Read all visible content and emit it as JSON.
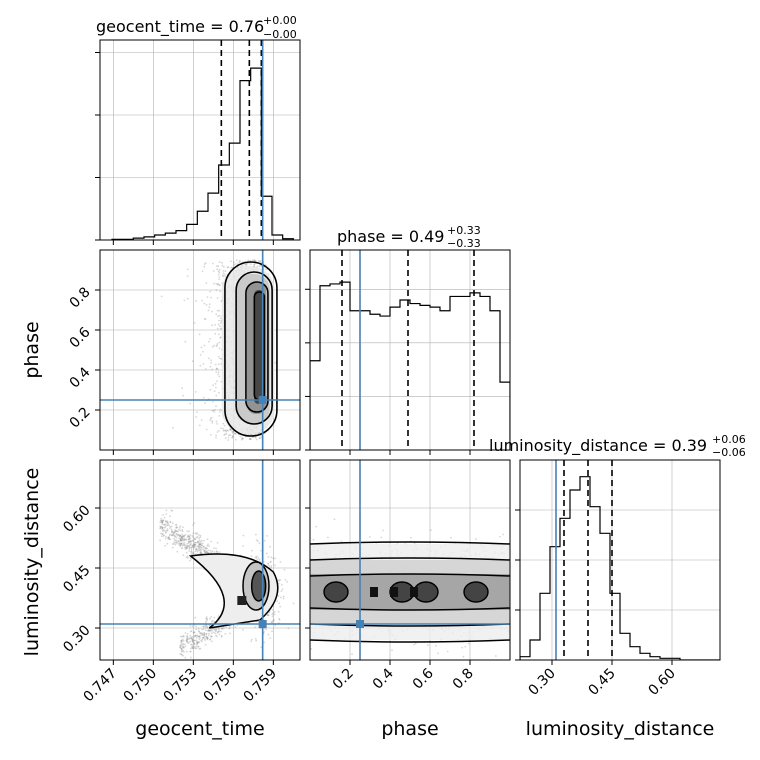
{
  "chart_data": [
    {
      "type": "histogram",
      "param": "geocent_time",
      "title_prefix": "geocent_time = 0.76",
      "title_sup": "+0.00",
      "title_sub": "−0.00",
      "xlim": [
        0.746,
        0.761
      ],
      "ylim": [
        0,
        0.32
      ],
      "ticks_y_marks": [
        0,
        0.1,
        0.2,
        0.3
      ],
      "bin_edges": [
        0.7469,
        0.7477,
        0.7485,
        0.7493,
        0.7501,
        0.7509,
        0.7517,
        0.7525,
        0.7533,
        0.7541,
        0.7549,
        0.7557,
        0.7565,
        0.7573,
        0.7581,
        0.7589,
        0.7597,
        0.7605
      ],
      "counts": [
        0.001,
        0.001,
        0.003,
        0.005,
        0.008,
        0.011,
        0.015,
        0.025,
        0.046,
        0.075,
        0.12,
        0.155,
        0.255,
        0.275,
        0.07,
        0.008,
        0.002
      ],
      "quantiles": [
        0.7551,
        0.7572,
        0.7581
      ],
      "truth": 0.7582
    },
    {
      "type": "scatter_contour",
      "x_param": "geocent_time",
      "y_param": "phase",
      "xlim": [
        0.746,
        0.761
      ],
      "ylim": [
        0.0,
        1.0
      ],
      "truth_x": 0.7582,
      "truth_y": 0.25,
      "density_center_x": 0.7582,
      "density_spread_x": 0.0012,
      "density_range_y": [
        0.05,
        0.93
      ]
    },
    {
      "type": "histogram",
      "param": "phase",
      "title_prefix": "phase = 0.49",
      "title_sup": "+0.33",
      "title_sub": "−0.33",
      "xlim": [
        0.0,
        1.0
      ],
      "ylim": [
        0,
        1.12
      ],
      "ticks_y_marks": [
        0,
        0.3,
        0.6,
        0.9
      ],
      "bin_edges": [
        0.0,
        0.05,
        0.1,
        0.15,
        0.2,
        0.25,
        0.3,
        0.35,
        0.4,
        0.45,
        0.5,
        0.55,
        0.6,
        0.65,
        0.7,
        0.75,
        0.8,
        0.85,
        0.9,
        0.95,
        1.0
      ],
      "counts": [
        0.5,
        0.92,
        0.93,
        0.94,
        0.78,
        0.78,
        0.76,
        0.75,
        0.8,
        0.84,
        0.82,
        0.81,
        0.8,
        0.78,
        0.86,
        0.86,
        0.88,
        0.86,
        0.78,
        0.38
      ],
      "quantiles": [
        0.16,
        0.49,
        0.82
      ],
      "truth": 0.25
    },
    {
      "type": "scatter_contour",
      "x_param": "geocent_time",
      "y_param": "luminosity_distance",
      "xlim": [
        0.746,
        0.761
      ],
      "ylim": [
        0.22,
        0.72
      ],
      "truth_x": 0.7582,
      "truth_y": 0.31
    },
    {
      "type": "scatter_contour",
      "x_param": "phase",
      "y_param": "luminosity_distance",
      "xlim": [
        0.0,
        1.0
      ],
      "ylim": [
        0.22,
        0.72
      ],
      "truth_x": 0.25,
      "truth_y": 0.31
    },
    {
      "type": "histogram",
      "param": "luminosity_distance",
      "title_prefix": "luminosity_distance = 0.39",
      "title_sup": "+0.06",
      "title_sub": "−0.06",
      "xlim": [
        0.22,
        0.72
      ],
      "ylim": [
        0,
        0.12
      ],
      "ticks_y_marks": [
        0,
        0.03,
        0.06,
        0.09
      ],
      "bin_edges": [
        0.22,
        0.245,
        0.27,
        0.295,
        0.32,
        0.345,
        0.37,
        0.395,
        0.42,
        0.445,
        0.47,
        0.495,
        0.52,
        0.545,
        0.57,
        0.595,
        0.62,
        0.645,
        0.67,
        0.695,
        0.72
      ],
      "counts": [
        0.002,
        0.012,
        0.04,
        0.068,
        0.085,
        0.102,
        0.11,
        0.092,
        0.076,
        0.04,
        0.016,
        0.008,
        0.004,
        0.002,
        0.001,
        0.001,
        0.0,
        0.0,
        0.0,
        0.0
      ],
      "quantiles": [
        0.33,
        0.39,
        0.45
      ],
      "truth": 0.31
    }
  ],
  "axes": {
    "geocent_time": {
      "label": "geocent_time",
      "ticks": [
        0.747,
        0.75,
        0.753,
        0.756,
        0.759
      ],
      "tick_labels": [
        "0.747",
        "0.750",
        "0.753",
        "0.756",
        "0.759"
      ]
    },
    "phase": {
      "label": "phase",
      "ticks": [
        0.2,
        0.4,
        0.6,
        0.8
      ],
      "tick_labels": [
        "0.2",
        "0.4",
        "0.6",
        "0.8"
      ]
    },
    "luminosity_distance": {
      "label": "luminosity_distance",
      "ticks": [
        0.3,
        0.45,
        0.6
      ],
      "tick_labels": [
        "0.30",
        "0.45",
        "0.60"
      ]
    }
  },
  "colors": {
    "truth": "#4682b4",
    "hist": "#000000",
    "points": "#8c8c8c",
    "grid": "#b0b0b0"
  }
}
